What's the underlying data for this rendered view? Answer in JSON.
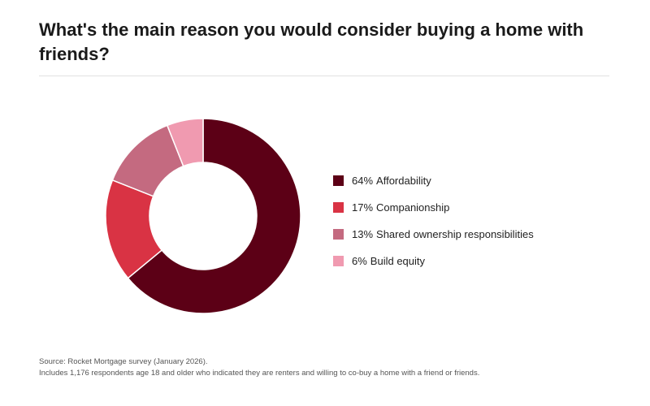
{
  "chart_data": {
    "type": "donut",
    "title": "What's the main reason you would consider buying a home with friends?",
    "categories": [
      "Affordability",
      "Companionship",
      "Shared ownership responsibilities",
      "Build equity"
    ],
    "values": [
      64,
      17,
      13,
      6
    ],
    "value_labels": [
      "64%",
      "17%",
      "13%",
      "6%"
    ],
    "colors": [
      "#5c0016",
      "#d93344",
      "#c46a80",
      "#f09ab0"
    ],
    "legend": "right",
    "notes": [
      "Source: Rocket Mortgage survey (January 2026).",
      "Includes 1,176 respondents age 18 and older who indicated they are renters and willing to co-buy a home with a friend or friends."
    ]
  }
}
